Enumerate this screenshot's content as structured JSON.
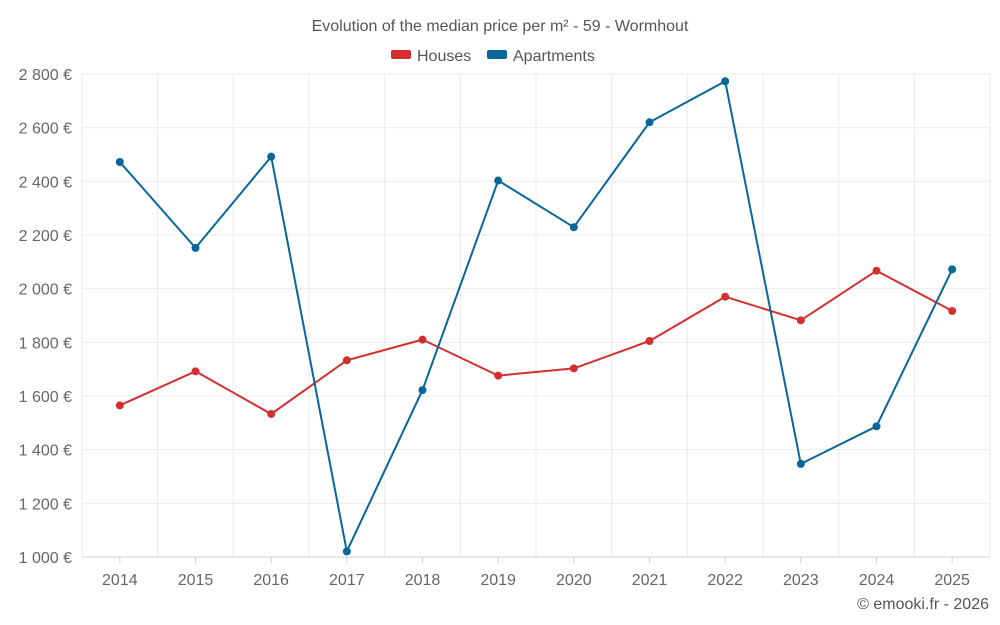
{
  "chart_data": {
    "type": "line",
    "title": "Evolution of the median price per m² - 59 - Wormhout",
    "categories": [
      "2014",
      "2015",
      "2016",
      "2017",
      "2018",
      "2019",
      "2020",
      "2021",
      "2022",
      "2023",
      "2024",
      "2025"
    ],
    "series": [
      {
        "name": "Houses",
        "color": "#d32f2f",
        "values": [
          1565,
          1692,
          1533,
          1733,
          1810,
          1676,
          1703,
          1805,
          1970,
          1882,
          2067,
          1917
        ]
      },
      {
        "name": "Apartments",
        "color": "#08669a",
        "values": [
          2472,
          2152,
          2492,
          1021,
          1622,
          2403,
          2229,
          2620,
          2773,
          1347,
          1487,
          2072
        ]
      }
    ],
    "ylim": [
      1000,
      2800
    ],
    "yticks": [
      1000,
      1200,
      1400,
      1600,
      1800,
      2000,
      2200,
      2400,
      2600,
      2800
    ],
    "ytick_labels": [
      "1 000 €",
      "1 200 €",
      "1 400 €",
      "1 600 €",
      "1 800 €",
      "2 000 €",
      "2 200 €",
      "2 400 €",
      "2 600 €",
      "2 800 €"
    ],
    "grid": true,
    "legend_position": "top-center"
  },
  "credit": "© emooki.fr - 2026"
}
